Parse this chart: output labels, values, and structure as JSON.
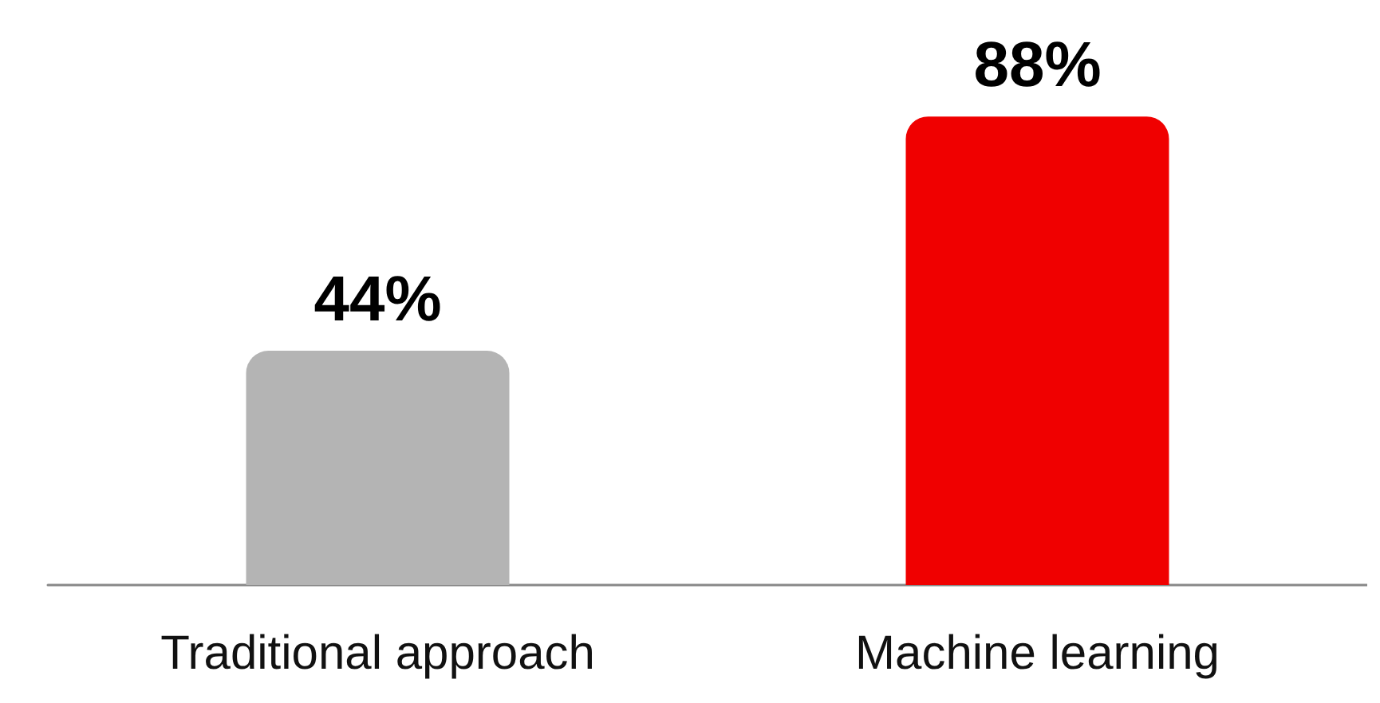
{
  "chart_data": {
    "type": "bar",
    "categories": [
      "Traditional approach",
      "Machine learning"
    ],
    "values": [
      44,
      88
    ],
    "value_labels": [
      "44%",
      "88%"
    ],
    "colors": [
      "#b4b4b4",
      "#f00000"
    ]
  }
}
